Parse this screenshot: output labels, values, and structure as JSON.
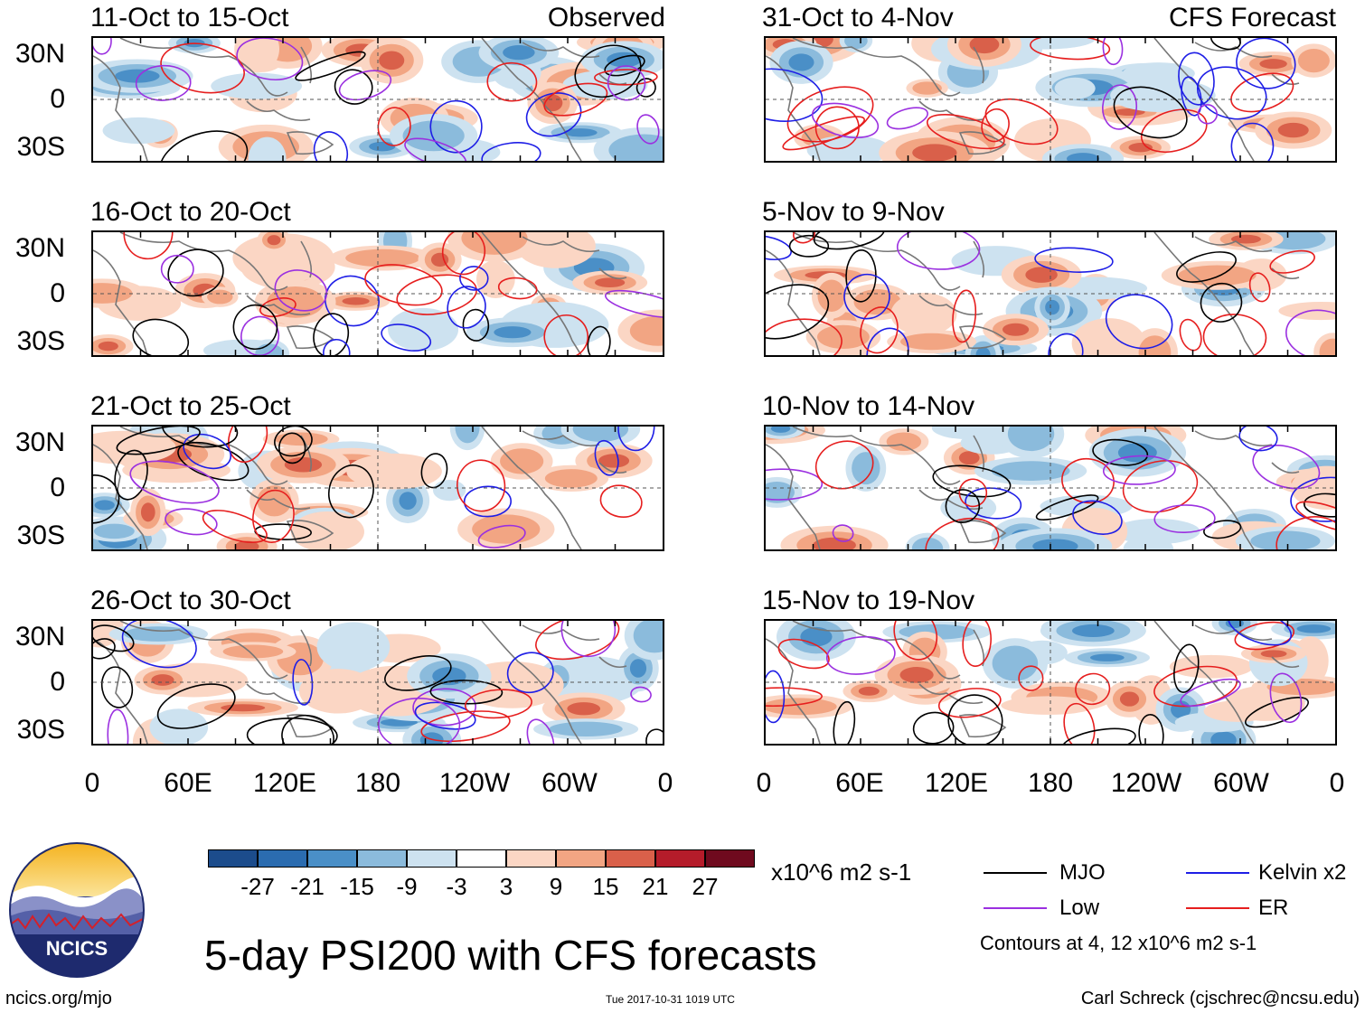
{
  "panels_observed": [
    {
      "dates": "11-Oct to 15-Oct",
      "label": "Observed"
    },
    {
      "dates": "16-Oct to 20-Oct",
      "label": ""
    },
    {
      "dates": "21-Oct to 25-Oct",
      "label": ""
    },
    {
      "dates": "26-Oct to 30-Oct",
      "label": ""
    }
  ],
  "panels_forecast": [
    {
      "dates": "31-Oct to 4-Nov",
      "label": "CFS Forecast"
    },
    {
      "dates": "5-Nov to 9-Nov",
      "label": ""
    },
    {
      "dates": "10-Nov to 14-Nov",
      "label": ""
    },
    {
      "dates": "15-Nov to 19-Nov",
      "label": ""
    }
  ],
  "lat_labels": [
    "30N",
    "0",
    "30S"
  ],
  "lon_labels": [
    "0",
    "60E",
    "120E",
    "180",
    "120W",
    "60W",
    "0"
  ],
  "colorbar": {
    "labels": [
      "-27",
      "-21",
      "-15",
      "-9",
      "-3",
      "3",
      "9",
      "15",
      "21",
      "27"
    ],
    "colors": [
      "#1c4c8c",
      "#2b6cb0",
      "#4a8fc7",
      "#8bbbdc",
      "#cde2f0",
      "#ffffff",
      "#fbd6c4",
      "#f2a583",
      "#d9604a",
      "#b51c2a",
      "#6f0a1e"
    ],
    "units": "x10^6 m2 s-1"
  },
  "legend": {
    "items": [
      {
        "label": "MJO",
        "color": "#000000"
      },
      {
        "label": "Kelvin x2",
        "color": "#1e1ee6"
      },
      {
        "label": "Low",
        "color": "#9b30e0"
      },
      {
        "label": "ER",
        "color": "#e61e1e"
      }
    ],
    "note": "Contours at 4, 12 x10^6 m2 s-1"
  },
  "logo_text": "NCICS",
  "main_title": "5-day PSI200 with CFS forecasts",
  "footer": {
    "left": "ncics.org/mjo",
    "center": "Tue 2017-10-31 1019 UTC",
    "right": "Carl Schreck (cjschrec@ncsu.edu)"
  }
}
